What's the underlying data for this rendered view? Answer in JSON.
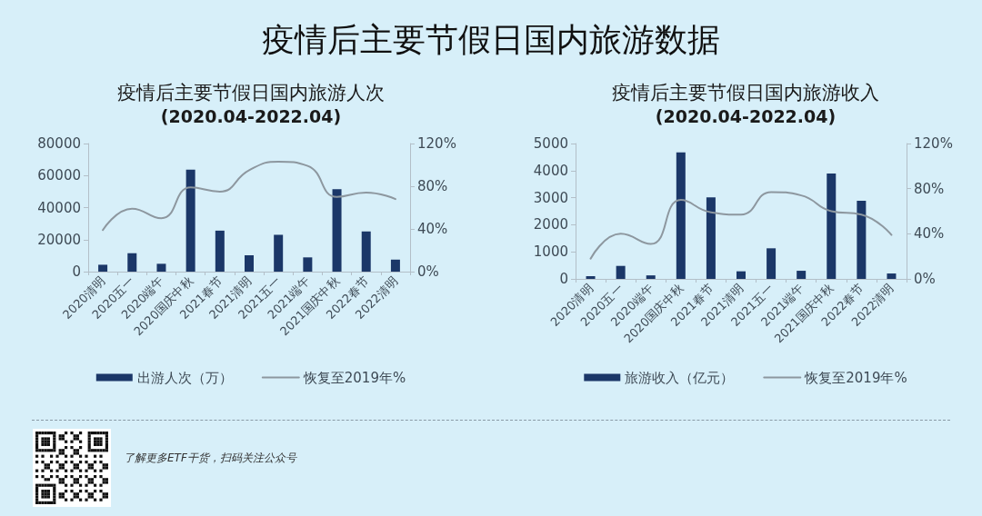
{
  "chart_data": [
    {
      "type": "bar",
      "title": "疫情后主要节假日国内旅游人次",
      "subtitle": "(2020.04-2022.04)",
      "annotations": [
        "疫情后主要节假日国内旅游数据",
        "了解更多ETF干货，扫码关注公众号"
      ],
      "categories": [
        "2020清明",
        "2020五一",
        "2020端午",
        "2020国庆中秋",
        "2021春节",
        "2021清明",
        "2021五一",
        "2021端午",
        "2021国庆中秋",
        "2022春节",
        "2022清明"
      ],
      "series": [
        {
          "name": "出游人次（万）",
          "color": "#1b3768",
          "values": [
            4300,
            11500,
            4900,
            63700,
            25600,
            10200,
            23000,
            8900,
            51500,
            25100,
            7500
          ]
        },
        {
          "name": "恢复至2019年%",
          "type": "line",
          "axis": "y2",
          "color": "#8d979f",
          "values": [
            39,
            59,
            50,
            79,
            75,
            95,
            103,
            99,
            70,
            74,
            68
          ]
        }
      ],
      "ylim": [
        0,
        80000
      ],
      "yticks": [
        0,
        20000,
        40000,
        60000,
        80000
      ],
      "y2lim": [
        0,
        120
      ],
      "y2ticks": [
        {
          "value": 0,
          "label": "0%"
        },
        {
          "value": 40,
          "label": "40%"
        },
        {
          "value": 80,
          "label": "80%"
        },
        {
          "value": 120,
          "label": "120%"
        }
      ],
      "grid": false,
      "legend": "bottom",
      "marker": "none"
    },
    {
      "type": "bar",
      "title": "疫情后主要节假日国内旅游收入",
      "subtitle": "(2020.04-2022.04)",
      "categories": [
        "2020清明",
        "2020五一",
        "2020端午",
        "2020国庆中秋",
        "2021春节",
        "2021清明",
        "2021五一",
        "2021端午",
        "2021国庆中秋",
        "2022春节",
        "2022清明"
      ],
      "series": [
        {
          "name": "旅游收入（亿元）",
          "color": "#1b3768",
          "values": [
            100,
            480,
            130,
            4670,
            3010,
            280,
            1130,
            300,
            3890,
            2890,
            200
          ]
        },
        {
          "name": "恢复至2019年%",
          "type": "line",
          "axis": "y2",
          "color": "#8d979f",
          "values": [
            18,
            40,
            31,
            70,
            59,
            57,
            77,
            74,
            60,
            57,
            39
          ]
        }
      ],
      "ylim": [
        0,
        5000
      ],
      "yticks": [
        0,
        1000,
        2000,
        3000,
        4000,
        5000
      ],
      "y2lim": [
        0,
        120
      ],
      "y2ticks": [
        {
          "value": 0,
          "label": "0%"
        },
        {
          "value": 40,
          "label": "40%"
        },
        {
          "value": 80,
          "label": "80%"
        },
        {
          "value": 120,
          "label": "120%"
        }
      ],
      "grid": false,
      "legend": "bottom",
      "marker": "none"
    }
  ]
}
